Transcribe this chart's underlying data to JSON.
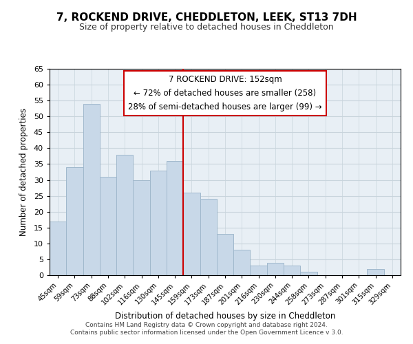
{
  "title": "7, ROCKEND DRIVE, CHEDDLETON, LEEK, ST13 7DH",
  "subtitle": "Size of property relative to detached houses in Cheddleton",
  "xlabel": "Distribution of detached houses by size in Cheddleton",
  "ylabel": "Number of detached properties",
  "bar_labels": [
    "45sqm",
    "59sqm",
    "73sqm",
    "88sqm",
    "102sqm",
    "116sqm",
    "130sqm",
    "145sqm",
    "159sqm",
    "173sqm",
    "187sqm",
    "201sqm",
    "216sqm",
    "230sqm",
    "244sqm",
    "258sqm",
    "273sqm",
    "287sqm",
    "301sqm",
    "315sqm",
    "329sqm"
  ],
  "bar_values": [
    17,
    34,
    54,
    31,
    38,
    30,
    33,
    36,
    26,
    24,
    13,
    8,
    3,
    4,
    3,
    1,
    0,
    0,
    0,
    2,
    0
  ],
  "bar_color": "#c8d8e8",
  "bar_edgecolor": "#a0b8cc",
  "vline_x_index": 8,
  "vline_color": "#cc0000",
  "ylim": [
    0,
    65
  ],
  "yticks": [
    0,
    5,
    10,
    15,
    20,
    25,
    30,
    35,
    40,
    45,
    50,
    55,
    60,
    65
  ],
  "annotation_title": "7 ROCKEND DRIVE: 152sqm",
  "annotation_line1": "← 72% of detached houses are smaller (258)",
  "annotation_line2": "28% of semi-detached houses are larger (99) →",
  "annotation_box_color": "#ffffff",
  "annotation_box_edgecolor": "#cc0000",
  "footer1": "Contains HM Land Registry data © Crown copyright and database right 2024.",
  "footer2": "Contains public sector information licensed under the Open Government Licence v 3.0.",
  "background_color": "#ffffff",
  "axes_bg_color": "#e8eff5",
  "grid_color": "#c8d4dc"
}
